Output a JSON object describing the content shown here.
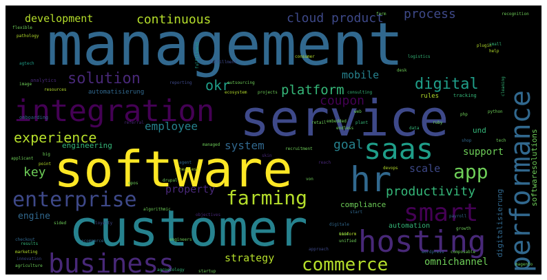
{
  "words": {
    "management": "management",
    "service": "service",
    "software": "software",
    "customer": "customer",
    "integration": "integration",
    "hosting": "hosting",
    "business": "business",
    "hr": "hr",
    "saas": "saas",
    "performance": "performance",
    "smart": "smart",
    "enterprise": "enterprise",
    "farming": "farming",
    "app": "app",
    "commerce": "commerce",
    "solution": "solution",
    "digital": "digital",
    "experience": "experience",
    "platform": "platform",
    "productivity": "productivity",
    "development": "development",
    "continuous": "continuous",
    "cloud_product": "cloud product",
    "process": "process",
    "okr": "okr",
    "mobile": "mobile",
    "coupon": "coupon",
    "employee": "employee",
    "system": "system",
    "goal": "goal",
    "key": "key",
    "scale": "scale",
    "support": "support",
    "property": "property",
    "engine": "engine",
    "strategy": "strategy",
    "omnichannel": "omnichannel",
    "engineering": "engineering",
    "compliance": "compliance",
    "automation": "automation",
    "softwaresolutions": "softwaresolutions",
    "digitalisierung": "digitalisierung",
    "und": "und",
    "automatisierung": "automatisierung",
    "rules": "rules",
    "tracking": "tracking",
    "onboarding": "onboarding",
    "analytics": "analytics",
    "resources": "resources",
    "reporting": "reporting",
    "ecosystem": "ecosystem",
    "fulfillment": "fulfillment",
    "logistics": "logistics",
    "consumer": "consumer",
    "recognition": "recognition",
    "flexible": "flexible",
    "marketing": "marketing",
    "agriculture": "agriculture",
    "agroecology": "agroecology",
    "startup": "startup",
    "wordpress": "wordpress",
    "composable": "composable",
    "ecommerce": "ecommerce",
    "magento": "magento",
    "python": "python",
    "plugin": "plugin",
    "embedded": "embedded",
    "endless": "endless",
    "drupal": "drupal",
    "headless": "headless",
    "managed": "managed",
    "applicant": "applicant",
    "payroll": "payroll",
    "loyalty": "loyalty",
    "von": "von",
    "growth": "growth",
    "devops": "devops",
    "approach": "approach",
    "objectives": "objectives",
    "algorithmic": "algorithmic",
    "checkout": "checkout",
    "results": "results",
    "innovation": "innovation",
    "sided": "sided",
    "time": "time",
    "engineers": "engineers",
    "tech": "tech",
    "recruitment": "recruitment",
    "mpos": "mpos",
    "agtech": "agtech",
    "pathology": "pathology",
    "image": "image",
    "projects": "projects",
    "outsourcing": "outsourcing",
    "desk": "desk",
    "consulting": "consulting",
    "retail": "retail",
    "ruby": "ruby",
    "plant": "plant",
    "web": "web",
    "data": "data",
    "small": "small",
    "help": "help",
    "farm": "farm",
    "uniform": "uniform",
    "big": "big",
    "point": "point",
    "start": "start",
    "agent": "agent",
    "shop": "shop",
    "cleaning": "cleaning",
    "propro": "propro",
    "quad": "quad",
    "referral": "referral",
    "cafe": "cafe",
    "php": "php",
    "unified": "unified",
    "digitale": "digitale",
    "skin": "skin",
    "reach": "reach"
  },
  "colors": {
    "background": "#000000",
    "deep_purple": "#440154",
    "purple": "#482878",
    "indigo": "#3e4989",
    "blue": "#31688e",
    "teal": "#26828e",
    "green_teal": "#1f9e89",
    "green": "#35b779",
    "lime": "#6ece58",
    "yellow_green": "#b5de2b",
    "yellow": "#fde725"
  }
}
